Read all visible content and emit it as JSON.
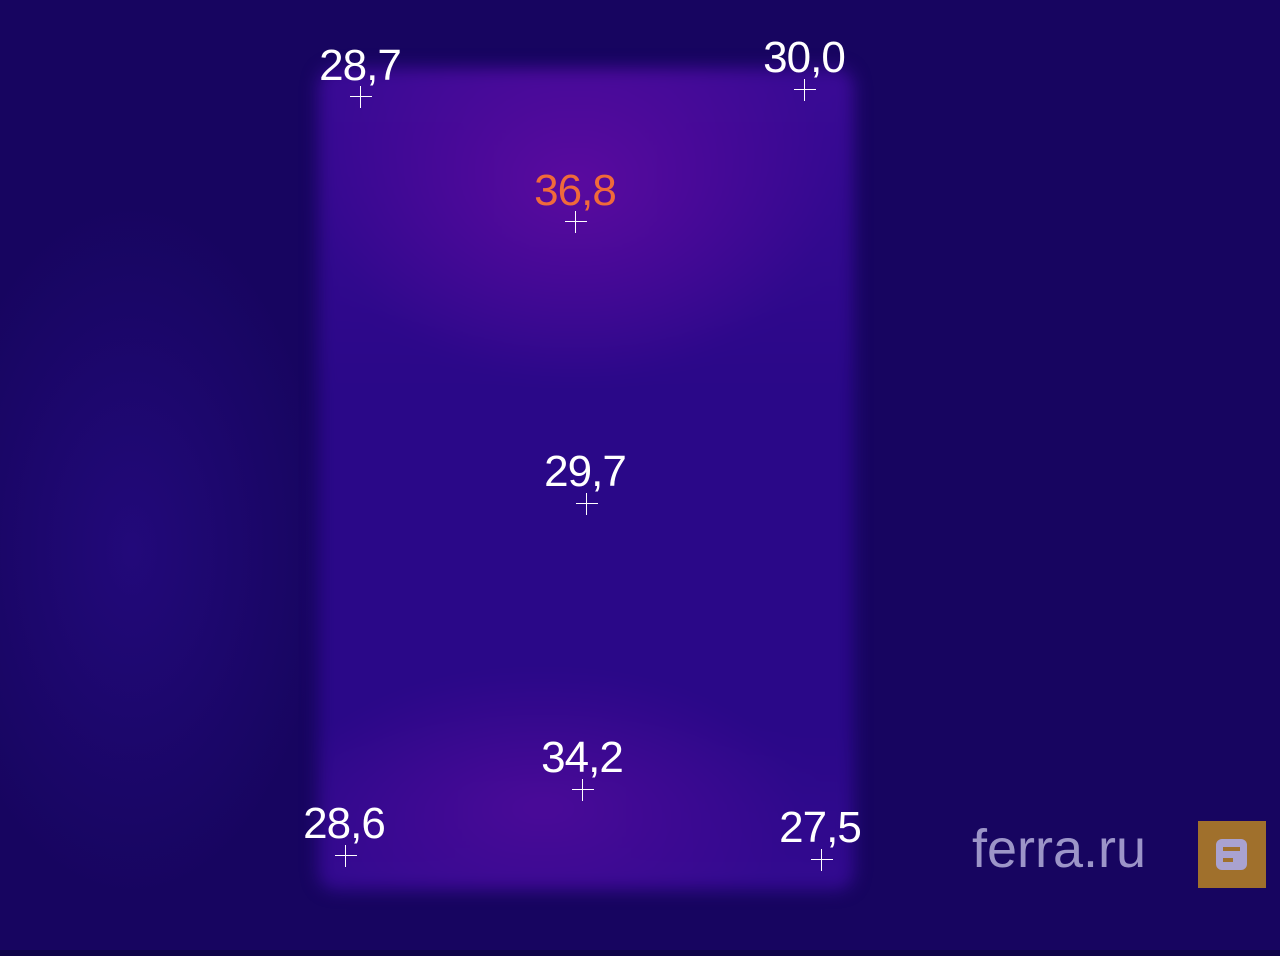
{
  "image_type": "thermal image",
  "colors": {
    "background": "#170560",
    "hotspot_label": "#f06a3a",
    "label": "#ffffff",
    "logo_accent": "#a0702c"
  },
  "measurements": [
    {
      "id": "top-left",
      "value": "28,7",
      "hot": false
    },
    {
      "id": "top-right",
      "value": "30,0",
      "hot": false
    },
    {
      "id": "top-center",
      "value": "36,8",
      "hot": true
    },
    {
      "id": "center",
      "value": "29,7",
      "hot": false
    },
    {
      "id": "bottom-center",
      "value": "34,2",
      "hot": false
    },
    {
      "id": "bottom-left",
      "value": "28,6",
      "hot": false
    },
    {
      "id": "bottom-right",
      "value": "27,5",
      "hot": false
    }
  ],
  "watermark": {
    "text": "ferra.ru",
    "icon": "ferra-logo-icon"
  }
}
